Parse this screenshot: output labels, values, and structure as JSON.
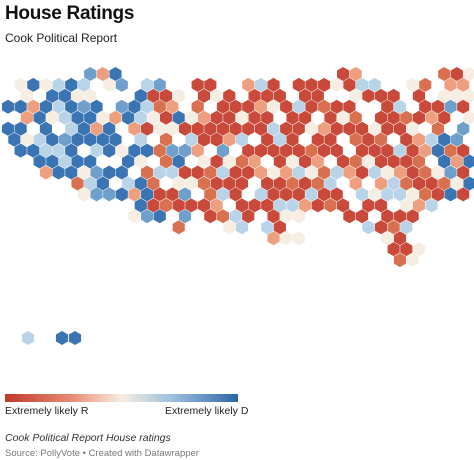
{
  "header": {
    "title": "House Ratings",
    "subtitle": "Cook Political Report"
  },
  "legend": {
    "left_label": "Extremely likely R",
    "right_label": "Extremely likely D"
  },
  "footer": {
    "note": "Cook Political Report House ratings",
    "source": "Source: PollyVote • Created with Datawrapper"
  },
  "colors": {
    "solid_r": "#c9493a",
    "likely_r": "#d9704f",
    "lean_r": "#ee9f80",
    "tossup": "#f6eee2",
    "lean_d": "#b9d4e8",
    "likely_d": "#6f9fcb",
    "solid_d": "#3a74b3"
  }
}
